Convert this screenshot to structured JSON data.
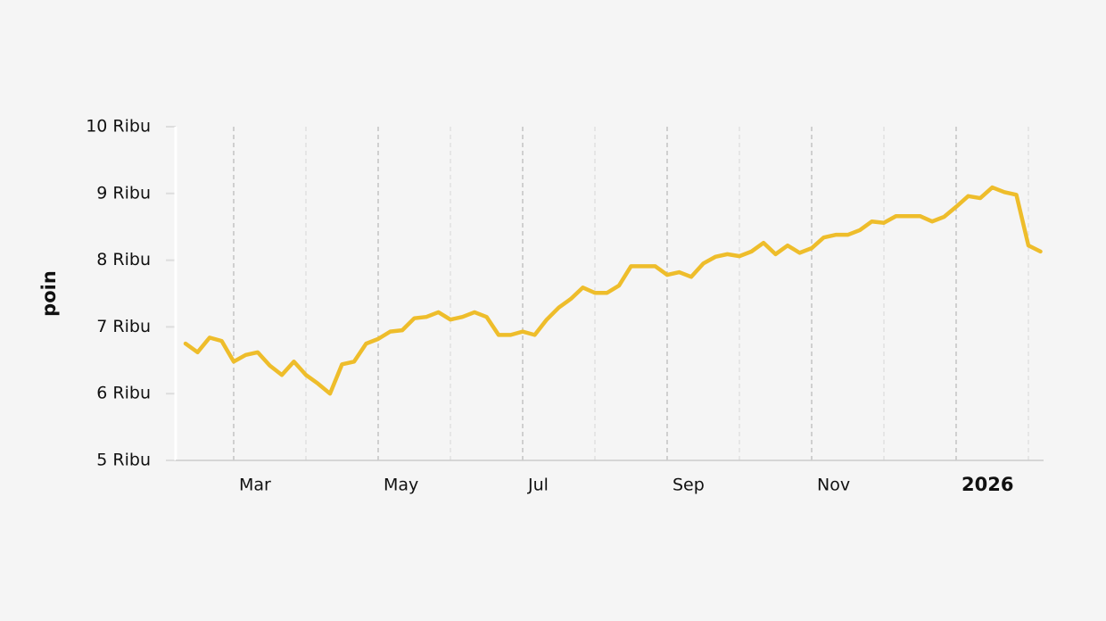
{
  "chart_data": {
    "type": "line",
    "y_label": "poin",
    "categories": [
      null,
      null,
      null,
      null,
      "Mar",
      null,
      null,
      null,
      null,
      null,
      null,
      null,
      null,
      null,
      null,
      null,
      "May",
      null,
      null,
      null,
      null,
      null,
      null,
      null,
      null,
      null,
      null,
      null,
      "Jul",
      null,
      null,
      null,
      null,
      null,
      null,
      null,
      null,
      null,
      null,
      null,
      "Sep",
      null,
      null,
      null,
      null,
      null,
      null,
      null,
      null,
      null,
      null,
      null,
      "Nov",
      null,
      null,
      null,
      null,
      null,
      null,
      null,
      null,
      null,
      null,
      null,
      "2026",
      null,
      null,
      null,
      null,
      null,
      null,
      null
    ],
    "series": [
      {
        "name": "poin",
        "color": "#eebd2b",
        "values": [
          6750,
          6620,
          6840,
          6790,
          6480,
          6580,
          6620,
          6420,
          6280,
          6480,
          6280,
          6150,
          6000,
          6440,
          6480,
          6750,
          6820,
          6930,
          6950,
          7130,
          7150,
          7220,
          7110,
          7150,
          7220,
          7150,
          6880,
          6880,
          6930,
          6880,
          7110,
          7290,
          7420,
          7590,
          7510,
          7510,
          7620,
          7910,
          7910,
          7910,
          7780,
          7820,
          7750,
          7950,
          8050,
          8090,
          8060,
          8130,
          8260,
          8090,
          8220,
          8110,
          8180,
          8340,
          8380,
          8380,
          8450,
          8580,
          8560,
          8660,
          8660,
          8660,
          8580,
          8650,
          8800,
          8960,
          8930,
          9090,
          9020,
          8980,
          8220,
          8130
        ]
      }
    ],
    "ylim": [
      5000,
      10000
    ],
    "yticks": [
      {
        "value": 5000,
        "label": "5 Ribu"
      },
      {
        "value": 6000,
        "label": "6 Ribu"
      },
      {
        "value": 7000,
        "label": "7 Ribu"
      },
      {
        "value": 8000,
        "label": "8 Ribu"
      },
      {
        "value": 9000,
        "label": "9 Ribu"
      },
      {
        "value": 10000,
        "label": "10 Ribu"
      }
    ],
    "grid": true
  }
}
